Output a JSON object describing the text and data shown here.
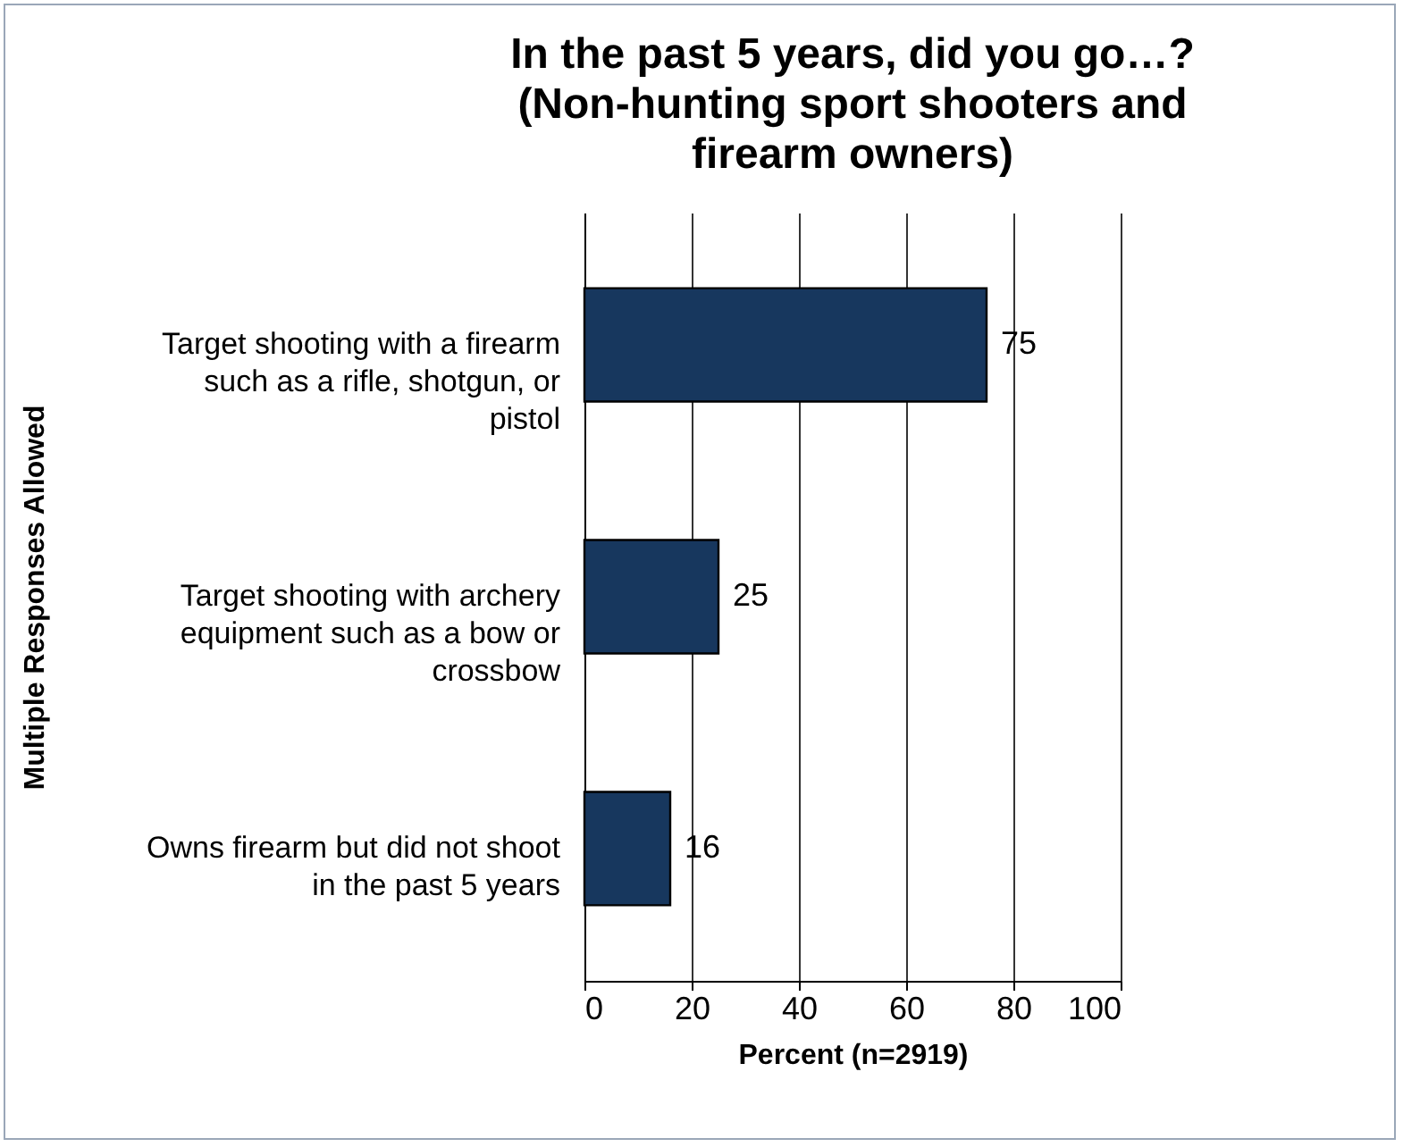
{
  "chart_data": {
    "type": "bar",
    "orientation": "horizontal",
    "title": "In the past 5 years, did you go…? (Non-hunting sport shooters and firearm owners)",
    "categories": [
      "Target shooting with a firearm such as a rifle, shotgun, or pistol",
      "Target shooting with archery equipment such as a bow or crossbow",
      "Owns firearm but did not shoot in the past 5 years"
    ],
    "values": [
      75,
      25,
      16
    ],
    "color": "#17375e",
    "xlabel": "Percent (n=2919)",
    "ylabel": "Multiple Responses Allowed",
    "xlim": [
      0,
      100
    ],
    "xticks": [
      0,
      20,
      40,
      60,
      80,
      100
    ],
    "grid": "x",
    "data_labels": true
  }
}
